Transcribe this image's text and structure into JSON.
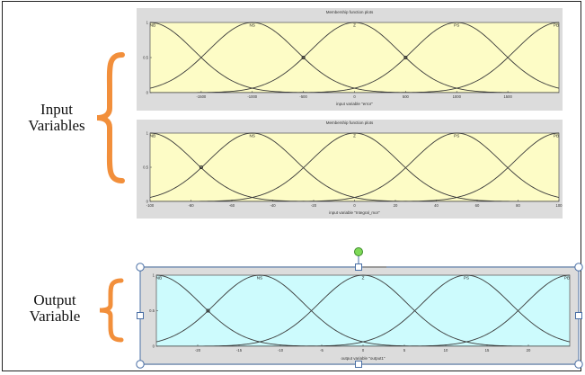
{
  "labels": {
    "input_group": [
      "Input",
      "Variables"
    ],
    "output_group": [
      "Output",
      "Variable"
    ]
  },
  "colors": {
    "input_panel_bg": "#fdfcc6",
    "output_panel_bg": "#cdfbfd",
    "curve": "#3b3b3b",
    "brace": "#f28f3b",
    "handle_top": "#7ed957",
    "selection_border": "#4a6fa5"
  },
  "icons": {
    "selection_handle": "circle",
    "rotate_handle": "green-circle"
  },
  "chart_data": [
    {
      "type": "line",
      "title": "Membership function plots",
      "xlabel": "input variable \"error\"",
      "ylabel": "",
      "xlim": [
        -2000,
        2000
      ],
      "ylim": [
        0,
        1
      ],
      "xticks": [
        -1500,
        -1000,
        -500,
        0,
        500,
        1000,
        1500
      ],
      "xtick_labels": [
        "-1500",
        "-1000",
        "-500",
        "0",
        "500",
        "1000",
        "1500"
      ],
      "yticks": [
        0,
        0.5,
        1
      ],
      "ytick_labels": [
        "0",
        "0.5",
        "1"
      ],
      "series": [
        {
          "name": "NB",
          "shape": "gaussmf",
          "center": -2000,
          "sigma": 425
        },
        {
          "name": "NS",
          "shape": "gaussmf",
          "center": -1000,
          "sigma": 425
        },
        {
          "name": "Z",
          "shape": "gaussmf",
          "center": 0,
          "sigma": 425
        },
        {
          "name": "PS",
          "shape": "gaussmf",
          "center": 1000,
          "sigma": 425
        },
        {
          "name": "PB",
          "shape": "gaussmf",
          "center": 2000,
          "sigma": 425
        }
      ],
      "markers": [
        {
          "x": -500,
          "y": 0.5
        },
        {
          "x": 500,
          "y": 0.5
        }
      ],
      "grid": false,
      "background": "yellow"
    },
    {
      "type": "line",
      "title": "Membership function plots",
      "xlabel": "input variable \"Integral_mor\"",
      "ylabel": "",
      "xlim": [
        -100,
        100
      ],
      "ylim": [
        0,
        1
      ],
      "xticks": [
        -100,
        -80,
        -60,
        -40,
        -20,
        0,
        20,
        40,
        60,
        80,
        100
      ],
      "xtick_labels": [
        "-100",
        "-80",
        "-60",
        "-40",
        "-20",
        "0",
        "20",
        "40",
        "60",
        "80",
        "100"
      ],
      "yticks": [
        0,
        0.5,
        1
      ],
      "ytick_labels": [
        "0",
        "0.5",
        "1"
      ],
      "series": [
        {
          "name": "NB",
          "shape": "gaussmf",
          "center": -100,
          "sigma": 21
        },
        {
          "name": "NS",
          "shape": "gaussmf",
          "center": -50,
          "sigma": 21
        },
        {
          "name": "Z",
          "shape": "gaussmf",
          "center": 0,
          "sigma": 21
        },
        {
          "name": "PS",
          "shape": "gaussmf",
          "center": 50,
          "sigma": 21
        },
        {
          "name": "PB",
          "shape": "gaussmf",
          "center": 100,
          "sigma": 21
        }
      ],
      "markers": [
        {
          "x": -75,
          "y": 0.5
        }
      ],
      "grid": false,
      "background": "yellow"
    },
    {
      "type": "line",
      "title": "",
      "xlabel": "output variable \"output1\"",
      "ylabel": "",
      "xlim": [
        -25,
        25
      ],
      "ylim": [
        0,
        1
      ],
      "xticks": [
        -20,
        -15,
        -10,
        -5,
        0,
        5,
        10,
        15,
        20
      ],
      "xtick_labels": [
        "-20",
        "-15",
        "-10",
        "-5",
        "0",
        "5",
        "10",
        "15",
        "20"
      ],
      "yticks": [
        0,
        0.5,
        1
      ],
      "ytick_labels": [
        "0",
        "0.5",
        "1"
      ],
      "series": [
        {
          "name": "NB",
          "shape": "gaussmf",
          "center": -25,
          "sigma": 5.3
        },
        {
          "name": "NS",
          "shape": "gaussmf",
          "center": -12.5,
          "sigma": 5.3
        },
        {
          "name": "Z",
          "shape": "gaussmf",
          "center": 0,
          "sigma": 5.3
        },
        {
          "name": "PS",
          "shape": "gaussmf",
          "center": 12.5,
          "sigma": 5.3
        },
        {
          "name": "PB",
          "shape": "gaussmf",
          "center": 25,
          "sigma": 5.3
        }
      ],
      "markers": [
        {
          "x": -18.75,
          "y": 0.5
        }
      ],
      "grid": false,
      "background": "cyan"
    }
  ]
}
